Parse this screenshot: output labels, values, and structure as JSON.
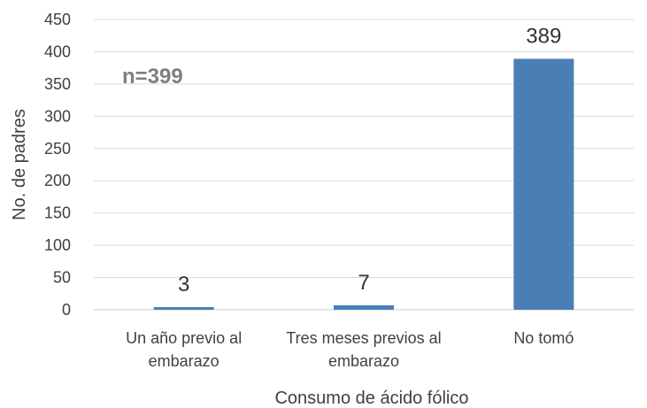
{
  "chart_data": {
    "type": "bar",
    "categories": [
      [
        "Un año previo al",
        "embarazo"
      ],
      [
        "Tres meses previos al",
        "embarazo"
      ],
      [
        "No tomó"
      ]
    ],
    "values": [
      3,
      7,
      389
    ],
    "data_labels": [
      "3",
      "7",
      "389"
    ],
    "title": "",
    "xlabel": "Consumo de ácido fólico",
    "ylabel": "No. de padres",
    "ylim": [
      0,
      450
    ],
    "yticks": [
      0,
      50,
      100,
      150,
      200,
      250,
      300,
      350,
      400,
      450
    ],
    "grid": true,
    "annotation": "n=399",
    "bar_color": "#4a7fb5"
  }
}
